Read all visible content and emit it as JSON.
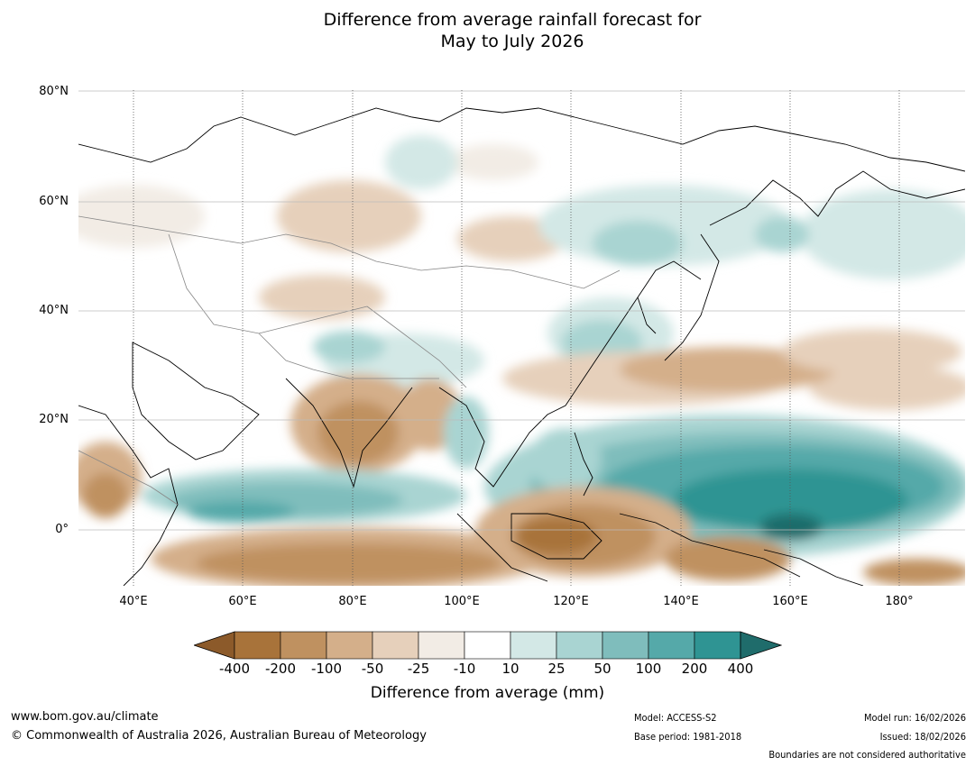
{
  "title_line1": "Difference from average rainfall forecast for",
  "title_line2": "May to July 2026",
  "lat_labels": [
    "80°N",
    "60°N",
    "40°N",
    "20°N",
    "0°"
  ],
  "lon_labels": [
    "40°E",
    "60°E",
    "80°E",
    "100°E",
    "120°E",
    "140°E",
    "160°E",
    "180°"
  ],
  "colorbar": {
    "ticks": [
      "-400",
      "-200",
      "-100",
      "-50",
      "-25",
      "-10",
      "10",
      "25",
      "50",
      "100",
      "200",
      "400"
    ],
    "colors": [
      "#8c5a2a",
      "#a8733a",
      "#bf9160",
      "#d4af8a",
      "#e6d0bb",
      "#f2ece5",
      "#ffffff",
      "#d3e8e6",
      "#a9d4d2",
      "#7fbdbc",
      "#55a9a9",
      "#2f9493",
      "#1f6c6b"
    ],
    "label": "Difference from average (mm)"
  },
  "footer": {
    "website": "www.bom.gov.au/climate",
    "copyright": "© Commonwealth of Australia 2026, Australian Bureau of Meteorology",
    "model": "Model: ACCESS-S2",
    "base_period": "Base period: 1981-2018",
    "model_run": "Model run: 16/02/2026",
    "issued": "Issued: 18/02/2026",
    "disclaimer": "Boundaries are not considered authoritative"
  }
}
